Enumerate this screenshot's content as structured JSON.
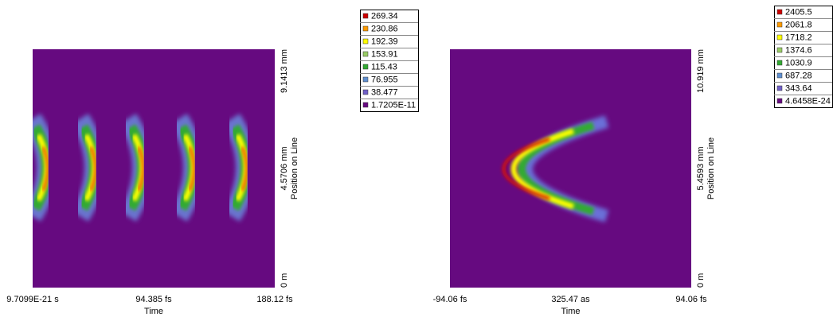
{
  "plots": [
    {
      "x_ticks": [
        "9.7099E-21 s",
        "94.385 fs",
        "188.12 fs"
      ],
      "x_label": "Time",
      "y_ticks": [
        "0 m",
        "4.5706 mm",
        "9.1413 mm"
      ],
      "y_label": "Position on Line",
      "legend": [
        {
          "label": "269.34",
          "color": "#cc0000"
        },
        {
          "label": "230.86",
          "color": "#ff9900"
        },
        {
          "label": "192.39",
          "color": "#ffff00"
        },
        {
          "label": "153.91",
          "color": "#99cc66"
        },
        {
          "label": "115.43",
          "color": "#33aa33"
        },
        {
          "label": "76.955",
          "color": "#5f8fd0"
        },
        {
          "label": "38.477",
          "color": "#7060c8"
        },
        {
          "label": "1.7205E-11",
          "color": "#660a80"
        }
      ]
    },
    {
      "x_ticks": [
        "-94.06 fs",
        "325.47 as",
        "94.06 fs"
      ],
      "x_label": "Time",
      "y_ticks": [
        "0 m",
        "5.4593 mm",
        "10.919 mm"
      ],
      "y_label": "Position on Line",
      "legend": [
        {
          "label": "2405.5",
          "color": "#cc0000"
        },
        {
          "label": "2061.8",
          "color": "#ff9900"
        },
        {
          "label": "1718.2",
          "color": "#ffff00"
        },
        {
          "label": "1374.6",
          "color": "#99cc66"
        },
        {
          "label": "1030.9",
          "color": "#33aa33"
        },
        {
          "label": "687.28",
          "color": "#5f8fd0"
        },
        {
          "label": "343.64",
          "color": "#7060c8"
        },
        {
          "label": "4.6458E-24",
          "color": "#660a80"
        }
      ]
    }
  ]
}
